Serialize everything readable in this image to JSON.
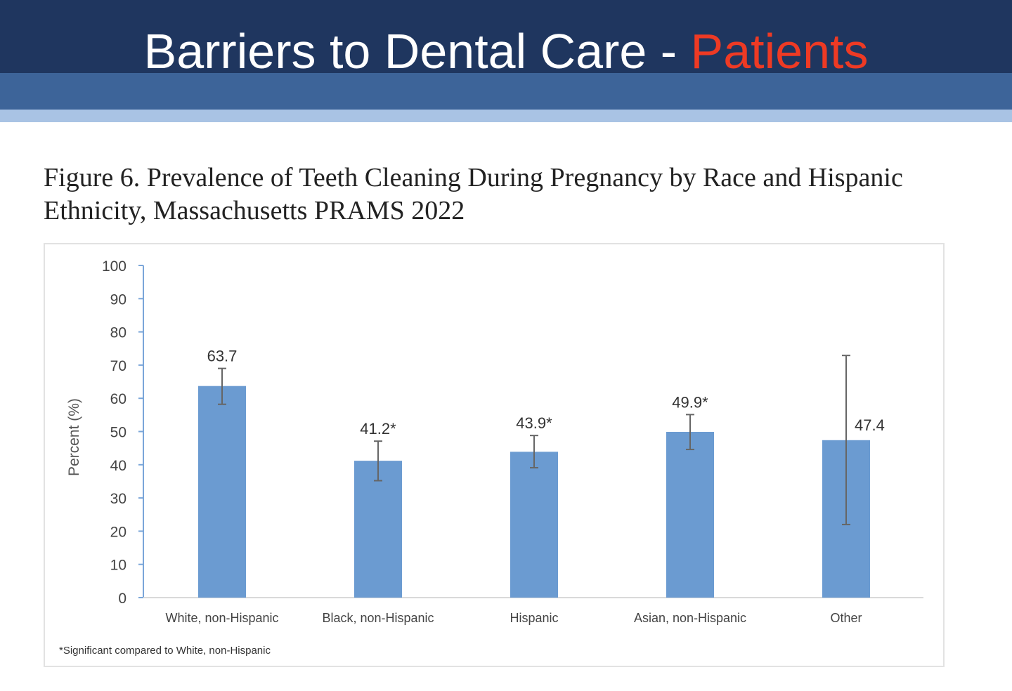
{
  "slide": {
    "title_main": "Barriers to Dental Care - ",
    "title_accent": "Patients",
    "colors": {
      "header_dark": "#1f365f",
      "header_mid": "#3d6499",
      "header_light": "#a9c3e4",
      "accent": "#ee3a24",
      "bar": "#6b9bd1"
    }
  },
  "figure": {
    "caption": "Figure 6. Prevalence of Teeth Cleaning During Pregnancy by Race and Hispanic Ethnicity, Massachusetts PRAMS 2022",
    "footnote": "*Significant compared to White, non-Hispanic"
  },
  "chart_data": {
    "type": "bar",
    "title": "",
    "xlabel": "",
    "ylabel": "Percent (%)",
    "ylim": [
      0,
      100
    ],
    "yticks": [
      "0",
      "10",
      "20",
      "30",
      "40",
      "50",
      "60",
      "70",
      "80",
      "90",
      "100"
    ],
    "grid": false,
    "categories": [
      "White, non-Hispanic",
      "Black, non-Hispanic",
      "Hispanic",
      "Asian, non-Hispanic",
      "Other"
    ],
    "values": [
      63.7,
      41.2,
      43.9,
      49.9,
      47.4
    ],
    "data_labels": [
      "63.7",
      "41.2*",
      "43.9*",
      "49.9*",
      "47.4"
    ],
    "error_low": [
      58.2,
      35.2,
      39.1,
      44.6,
      22.0
    ],
    "error_high": [
      69.0,
      47.1,
      48.8,
      55.1,
      72.9
    ]
  }
}
